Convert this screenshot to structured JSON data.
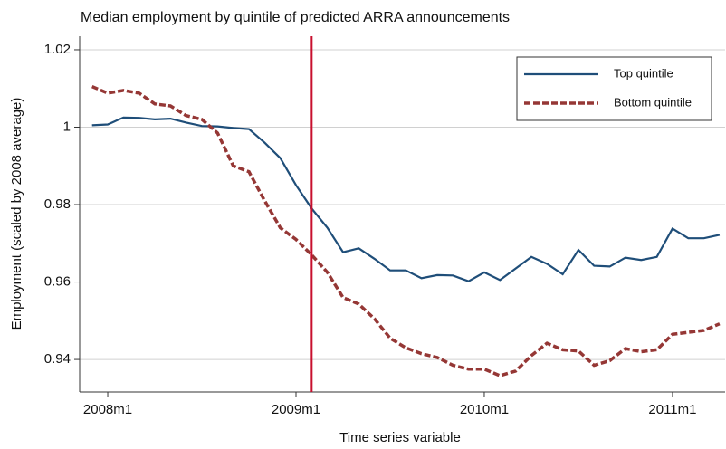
{
  "chart_data": {
    "type": "line",
    "title": "Median employment by quintile of predicted ARRA announcements",
    "xlabel": "Time series variable",
    "ylabel": "Employment (scaled by 2008 average)",
    "x": [
      -1,
      0,
      1,
      2,
      3,
      4,
      5,
      6,
      7,
      8,
      9,
      10,
      11,
      12,
      13,
      14,
      15,
      16,
      17,
      18,
      19,
      20,
      21,
      22,
      23,
      24,
      25,
      26,
      27,
      28,
      29,
      30,
      31,
      32,
      33,
      34,
      35,
      36,
      37,
      38,
      39
    ],
    "series": [
      {
        "name": "Top quintile",
        "color": "#1f4e79",
        "dash": false,
        "values": [
          1.0005,
          1.0007,
          1.0025,
          1.0024,
          1.002,
          1.0022,
          1.0012,
          1.0003,
          1.0002,
          0.9998,
          0.9995,
          0.996,
          0.992,
          0.985,
          0.979,
          0.974,
          0.9677,
          0.9687,
          0.966,
          0.963,
          0.963,
          0.961,
          0.9618,
          0.9617,
          0.9602,
          0.9625,
          0.9605,
          0.9635,
          0.9665,
          0.9647,
          0.962,
          0.9683,
          0.9642,
          0.964,
          0.9663,
          0.9657,
          0.9665,
          0.9738,
          0.9713,
          0.9713,
          0.9722
        ]
      },
      {
        "name": "Bottom quintile",
        "color": "#953735",
        "dash": true,
        "values": [
          1.0105,
          1.0088,
          1.0095,
          1.0088,
          1.006,
          1.0055,
          1.003,
          1.002,
          0.9985,
          0.99,
          0.9885,
          0.981,
          0.974,
          0.971,
          0.967,
          0.9625,
          0.956,
          0.9543,
          0.9505,
          0.9455,
          0.943,
          0.9415,
          0.9405,
          0.9385,
          0.9375,
          0.9375,
          0.9358,
          0.937,
          0.941,
          0.9442,
          0.9425,
          0.9422,
          0.9385,
          0.9397,
          0.9428,
          0.942,
          0.9425,
          0.9465,
          0.947,
          0.9475,
          0.9492
        ]
      }
    ],
    "vline": {
      "value": 13,
      "color": "#c8102e"
    },
    "xlim": [
      -1.79,
      39.35
    ],
    "xticks": [
      {
        "value": 0,
        "label": "2008m1"
      },
      {
        "value": 12,
        "label": "2009m1"
      },
      {
        "value": 24,
        "label": "2010m1"
      },
      {
        "value": 36,
        "label": "2011m1"
      }
    ],
    "ylim": [
      0.9316,
      1.0235
    ],
    "yticks": [
      0.94,
      0.96,
      0.98,
      1,
      1.02
    ],
    "grid": true,
    "legend": "top-right"
  }
}
